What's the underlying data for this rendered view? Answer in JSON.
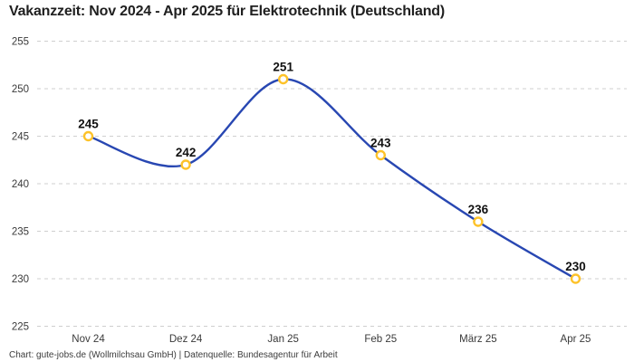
{
  "title": "Vakanzzeit: Nov 2024 - Apr 2025 für Elektrotechnik (Deutschland)",
  "footer": {
    "text": "Chart: gute-jobs.de (Wollmilchsau GmbH) | Datenquelle: Bundesagentur für Arbeit"
  },
  "chart_data": {
    "type": "line",
    "title": "Vakanzzeit: Nov 2024 - Apr 2025 für Elektrotechnik (Deutschland)",
    "categories": [
      "Nov 24",
      "Dez 24",
      "Jan 25",
      "Feb 25",
      "März 25",
      "Apr 25"
    ],
    "values": [
      245,
      242,
      251,
      243,
      236,
      230
    ],
    "point_labels": [
      "245",
      "242",
      "251",
      "243",
      "236",
      "230"
    ],
    "xlabel": "",
    "ylabel": "",
    "ylim": [
      225,
      255
    ],
    "yticks": [
      255,
      250,
      245,
      240,
      235,
      230,
      225
    ],
    "grid": "horizontal-dashed",
    "legend": "none",
    "curve": "smooth",
    "colors": {
      "line": "#2847b2",
      "marker_stroke": "#fdc229",
      "marker_fill": "#ffffff",
      "grid": "#cfcfcf"
    }
  }
}
